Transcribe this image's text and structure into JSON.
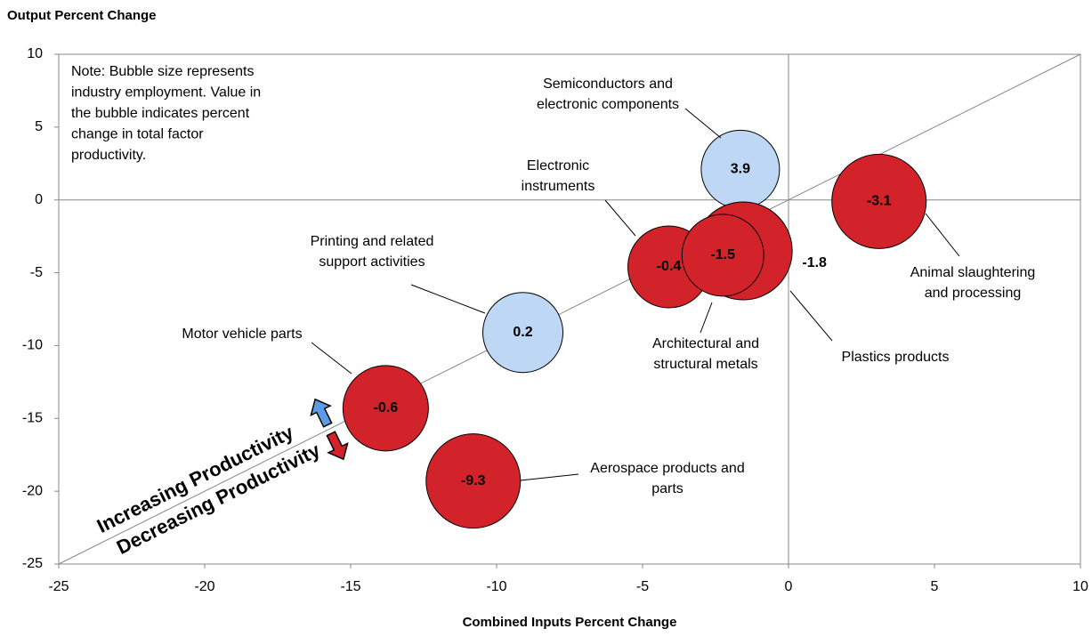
{
  "chart_data": {
    "type": "bubble",
    "title": "Output Percent Change",
    "x_label": "Combined Inputs Percent Change",
    "note": [
      "Note: Bubble size represents",
      "industry employment. Value in",
      "the bubble indicates percent",
      "change in  total factor",
      "productivity."
    ],
    "diagonal_labels": [
      "Increasing Productivity",
      "Decreasing Productivity"
    ],
    "categories": [
      [
        "Semiconductors and",
        "electronic components"
      ],
      [
        "Animal slaughtering",
        "and processing"
      ],
      [
        "Plastics products"
      ],
      [
        "Electronic",
        "instruments"
      ],
      [
        "Architectural and",
        "structural metals"
      ],
      [
        "Printing and related",
        "support activities"
      ],
      [
        "Motor vehicle parts"
      ],
      [
        "Aerospace products and",
        "parts"
      ]
    ],
    "x": [
      -1.65,
      3.1,
      -1.55,
      -4.1,
      -2.25,
      -9.1,
      -13.8,
      -10.8
    ],
    "values": [
      2.1,
      -0.1,
      -3.5,
      -4.6,
      -3.8,
      -9.1,
      -14.3,
      -19.3
    ],
    "sizes": [
      44,
      53,
      55,
      46,
      46,
      45,
      48,
      53
    ],
    "tfp": [
      3.9,
      -3.1,
      -1.8,
      -0.4,
      -1.5,
      0.2,
      -0.6,
      -9.3
    ],
    "colors": [
      "#bdd7f4",
      "#d2232a",
      "#d2232a",
      "#d2232a",
      "#d2232a",
      "#bdd7f4",
      "#d2232a",
      "#d2232a"
    ],
    "diagonal_colors": [
      "#5b9be6",
      "#d2232a"
    ],
    "xlim": [
      -25,
      10
    ],
    "ylim": [
      -25,
      10
    ],
    "xticks": [
      -25,
      -20,
      -15,
      -10,
      -5,
      0,
      5,
      10
    ],
    "yticks": [
      -25,
      -20,
      -15,
      -10,
      -5,
      0,
      5,
      10
    ]
  }
}
